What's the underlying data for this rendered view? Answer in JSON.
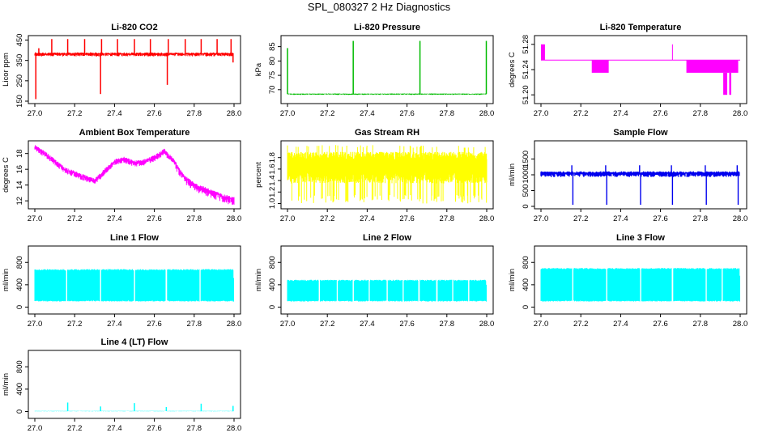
{
  "figure": {
    "title": "SPL_080327  2 Hz Diagnostics"
  },
  "chart_data": [
    {
      "id": "co2",
      "type": "line",
      "title": "Li-820 CO2",
      "ylabel": "Licor ppm",
      "color": "#ff0000",
      "xlim": [
        27.0,
        28.0
      ],
      "ylim": [
        150,
        460
      ],
      "xticks": [
        "27.0",
        "27.2",
        "27.4",
        "27.6",
        "27.8",
        "28.0"
      ],
      "yticks": [
        "150",
        "250",
        "350",
        "450"
      ],
      "series": {
        "name": "CO2",
        "baseline": 382,
        "noise": 12,
        "spikes": [
          [
            27.005,
            160
          ],
          [
            27.02,
            410
          ],
          [
            27.085,
            455
          ],
          [
            27.165,
            455
          ],
          [
            27.25,
            455
          ],
          [
            27.33,
            185
          ],
          [
            27.335,
            455
          ],
          [
            27.415,
            455
          ],
          [
            27.5,
            455
          ],
          [
            27.58,
            455
          ],
          [
            27.665,
            230
          ],
          [
            27.67,
            455
          ],
          [
            27.755,
            455
          ],
          [
            27.835,
            455
          ],
          [
            27.915,
            455
          ],
          [
            27.985,
            455
          ],
          [
            27.995,
            340
          ]
        ]
      }
    },
    {
      "id": "pressure",
      "type": "line",
      "title": "Li-820 Pressure",
      "ylabel": "kPa",
      "color": "#00bb00",
      "xlim": [
        27.0,
        28.0
      ],
      "ylim": [
        66,
        88
      ],
      "xticks": [
        "27.0",
        "27.2",
        "27.4",
        "27.6",
        "27.8",
        "28.0"
      ],
      "yticks": [
        "70",
        "75",
        "80",
        "85"
      ],
      "series": {
        "name": "Pressure",
        "baseline": 68.5,
        "noise": 0.3,
        "spikes": [
          [
            27.0,
            84.5
          ],
          [
            27.33,
            87
          ],
          [
            27.665,
            87
          ],
          [
            27.998,
            87
          ]
        ]
      }
    },
    {
      "id": "temperature",
      "type": "line",
      "title": "Li-820 Temperature",
      "ylabel": "degrees C",
      "color": "#ff00ff",
      "xlim": [
        27.0,
        28.0
      ],
      "ylim": [
        51.19,
        51.29
      ],
      "xticks": [
        "27.0",
        "27.2",
        "27.4",
        "27.6",
        "27.8",
        "28.0"
      ],
      "yticks": [
        "51.20",
        "51.24",
        "51.28"
      ],
      "series": {
        "name": "Temperature",
        "baseline": 51.255,
        "blocks": [
          [
            27.0,
            27.02,
            51.255,
            51.28
          ],
          [
            27.255,
            27.34,
            51.235,
            51.255
          ],
          [
            27.73,
            27.99,
            51.235,
            51.255
          ],
          [
            27.915,
            27.935,
            51.2,
            51.235
          ],
          [
            27.945,
            27.955,
            51.2,
            51.235
          ]
        ],
        "spikes": [
          [
            27.66,
            51.28
          ]
        ]
      }
    },
    {
      "id": "ambient",
      "type": "line",
      "title": "Ambient Box Temperature",
      "ylabel": "degrees C",
      "color": "#ff00ff",
      "xlim": [
        27.0,
        28.0
      ],
      "ylim": [
        11.3,
        19.3
      ],
      "xticks": [
        "27.0",
        "27.2",
        "27.4",
        "27.6",
        "27.8",
        "28.0"
      ],
      "yticks": [
        "12",
        "14",
        "16",
        "18"
      ],
      "series": {
        "name": "Ambient",
        "x": [
          27.0,
          27.05,
          27.1,
          27.15,
          27.2,
          27.25,
          27.3,
          27.35,
          27.4,
          27.45,
          27.5,
          27.55,
          27.6,
          27.65,
          27.7,
          27.75,
          27.8,
          27.85,
          27.9,
          27.95,
          28.0
        ],
        "y": [
          18.8,
          18.0,
          17.0,
          16.0,
          15.5,
          15.0,
          14.5,
          15.8,
          17.0,
          17.3,
          16.8,
          17.0,
          17.5,
          18.3,
          17.0,
          15.0,
          14.0,
          13.5,
          13.0,
          12.5,
          12.2
        ],
        "noise": 0.5
      }
    },
    {
      "id": "rh",
      "type": "line",
      "title": "Gas Stream RH",
      "ylabel": "percent",
      "color": "#ffff00",
      "xlim": [
        27.0,
        28.0
      ],
      "ylim": [
        0.95,
        2.05
      ],
      "xticks": [
        "27.0",
        "27.2",
        "27.4",
        "27.6",
        "27.8",
        "28.0"
      ],
      "yticks": [
        "1.0",
        "1.2",
        "1.4",
        "1.6",
        "1.8"
      ],
      "series": {
        "name": "RH",
        "band": [
          1.35,
          1.9
        ],
        "low": 1.0,
        "high": 2.02
      }
    },
    {
      "id": "sample",
      "type": "line",
      "title": "Sample Flow",
      "ylabel": "ml/min",
      "color": "#0000ee",
      "xlim": [
        27.0,
        28.0
      ],
      "ylim": [
        0,
        2000
      ],
      "xticks": [
        "27.0",
        "27.2",
        "27.4",
        "27.6",
        "27.8",
        "28.0"
      ],
      "yticks": [
        "0",
        "500",
        "1000",
        "1500"
      ],
      "series": {
        "name": "Sample Flow",
        "baseline": 1050,
        "noise": 60,
        "dips": [
          27.16,
          27.33,
          27.5,
          27.66,
          27.83,
          27.99
        ],
        "dip_value": 50,
        "spike_value": 1300
      }
    },
    {
      "id": "line1",
      "type": "line",
      "title": "Line 1 Flow",
      "ylabel": "ml/min",
      "color": "#00ffff",
      "xlim": [
        27.0,
        28.0
      ],
      "ylim": [
        -80,
        1050
      ],
      "xticks": [
        "27.0",
        "27.2",
        "27.4",
        "27.6",
        "27.8",
        "28.0"
      ],
      "yticks": [
        "0",
        "400",
        "800"
      ],
      "series": {
        "name": "Line 1",
        "band": [
          100,
          680
        ],
        "gaps": [
          27.16,
          27.33,
          27.5,
          27.66,
          27.83
        ],
        "tail": 520
      }
    },
    {
      "id": "line2",
      "type": "line",
      "title": "Line 2 Flow",
      "ylabel": "ml/min",
      "color": "#00ffff",
      "xlim": [
        27.0,
        28.0
      ],
      "ylim": [
        -80,
        1050
      ],
      "xticks": [
        "27.0",
        "27.2",
        "27.4",
        "27.6",
        "27.8",
        "28.0"
      ],
      "yticks": [
        "0",
        "400",
        "800"
      ],
      "series": {
        "name": "Line 2",
        "band": [
          100,
          490
        ],
        "gaps": [
          27.16,
          27.25,
          27.33,
          27.41,
          27.5,
          27.58,
          27.66,
          27.75,
          27.83,
          27.91
        ],
        "tail": 400
      }
    },
    {
      "id": "line3",
      "type": "line",
      "title": "Line 3 Flow",
      "ylabel": "ml/min",
      "color": "#00ffff",
      "xlim": [
        27.0,
        28.0
      ],
      "ylim": [
        -80,
        1050
      ],
      "xticks": [
        "27.0",
        "27.2",
        "27.4",
        "27.6",
        "27.8",
        "28.0"
      ],
      "yticks": [
        "0",
        "400",
        "800"
      ],
      "series": {
        "name": "Line 3",
        "band": [
          100,
          700
        ],
        "gaps": [
          27.16,
          27.33,
          27.5,
          27.66,
          27.83,
          27.91
        ],
        "tail": 560
      }
    },
    {
      "id": "line4",
      "type": "line",
      "title": "Line 4 (LT) Flow",
      "ylabel": "ml/min",
      "color": "#00ffff",
      "xlim": [
        27.0,
        28.0
      ],
      "ylim": [
        -80,
        1050
      ],
      "xticks": [
        "27.0",
        "27.2",
        "27.4",
        "27.6",
        "27.8",
        "28.0"
      ],
      "yticks": [
        "0",
        "400",
        "800"
      ],
      "series": {
        "name": "Line 4 (LT)",
        "baseline": 8,
        "noise": 4,
        "spikes": [
          [
            27.165,
            160
          ],
          [
            27.33,
            90
          ],
          [
            27.5,
            150
          ],
          [
            27.66,
            80
          ],
          [
            27.835,
            140
          ],
          [
            27.995,
            100
          ]
        ]
      }
    }
  ]
}
